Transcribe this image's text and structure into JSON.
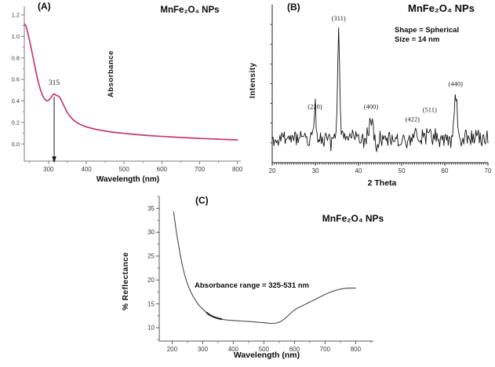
{
  "chart_data": [
    {
      "type": "line",
      "panel_label": "(A)",
      "title": "MnFe₂O₄ NPs",
      "xlabel": "Wavelength (nm)",
      "ylabel": "Absorbance",
      "xlim": [
        236,
        809
      ],
      "ylim": [
        -0.16,
        1.28
      ],
      "xticks": [
        "300",
        "400",
        "500",
        "600",
        "700",
        "800"
      ],
      "xminor": [
        250,
        350,
        450,
        550,
        650,
        750
      ],
      "yticks": [
        "0.0",
        "0.2",
        "0.4",
        "0.6",
        "0.8",
        "1.0",
        "1.2"
      ],
      "yminor": [
        0.1,
        0.3,
        0.5,
        0.7,
        0.9,
        1.1
      ],
      "line_color": "#c23a72",
      "grid": false,
      "peak_annotation": {
        "text": "315",
        "x": 315,
        "label_value": 0.55,
        "arrow_from": 0.44
      },
      "x": [
        236,
        240,
        244,
        248,
        252,
        256,
        260,
        264,
        268,
        272,
        276,
        280,
        284,
        288,
        292,
        296,
        300,
        304,
        308,
        312,
        315,
        318,
        321,
        324,
        327,
        330,
        334,
        338,
        342,
        346,
        350,
        355,
        360,
        365,
        370,
        375,
        380,
        390,
        400,
        410,
        420,
        430,
        440,
        455,
        470,
        485,
        500,
        515,
        530,
        550,
        570,
        590,
        610,
        630,
        650,
        670,
        690,
        710,
        730,
        750,
        770,
        790,
        800
      ],
      "y": [
        1.115,
        1.1,
        1.05,
        0.99,
        0.925,
        0.86,
        0.79,
        0.72,
        0.655,
        0.59,
        0.535,
        0.49,
        0.455,
        0.425,
        0.408,
        0.401,
        0.405,
        0.418,
        0.44,
        0.458,
        0.465,
        0.458,
        0.45,
        0.448,
        0.442,
        0.43,
        0.405,
        0.375,
        0.345,
        0.318,
        0.292,
        0.266,
        0.244,
        0.226,
        0.211,
        0.199,
        0.188,
        0.172,
        0.159,
        0.149,
        0.14,
        0.133,
        0.126,
        0.117,
        0.11,
        0.103,
        0.098,
        0.093,
        0.088,
        0.082,
        0.077,
        0.072,
        0.068,
        0.064,
        0.06,
        0.056,
        0.053,
        0.05,
        0.047,
        0.044,
        0.041,
        0.038,
        0.036
      ]
    },
    {
      "type": "line",
      "subtype": "xrd",
      "panel_label": "(B)",
      "title": "MnFe₂O₄ NPs",
      "info_lines": [
        "Shape = Spherical",
        "Size = 14 nm"
      ],
      "xlabel": "2 Theta",
      "ylabel": "Intensity",
      "xlim": [
        20,
        70
      ],
      "ylim": [
        0,
        200
      ],
      "xticks": [
        "20",
        "30",
        "40",
        "50",
        "60",
        "70"
      ],
      "x_minor_step": 0.5,
      "y_minor_step": 25,
      "baseline": 30,
      "noise_amplitude": 10,
      "seed": 11,
      "step": 0.2,
      "line_color": "#141414",
      "grid": false,
      "peaks": [
        {
          "label": "(220)",
          "center": 29.9,
          "height": 29,
          "width": 0.35,
          "label_y": 68,
          "label_dx": 0
        },
        {
          "label": "(311)",
          "center": 35.4,
          "height": 140,
          "width": 0.27,
          "label_y": 180,
          "label_dx": 0
        },
        {
          "label": "(400)",
          "center": 42.9,
          "height": 27,
          "width": 0.35,
          "label_y": 68,
          "label_dx": 0
        },
        {
          "label": "(422)",
          "center": 53.3,
          "height": 13,
          "width": 0.33,
          "label_y": 52,
          "label_dx": -0.8
        },
        {
          "label": "(511)",
          "center": 56.5,
          "height": 16,
          "width": 0.33,
          "label_y": 64,
          "label_dx": 0
        },
        {
          "label": "(440)",
          "center": 62.5,
          "height": 54,
          "width": 0.38,
          "label_y": 97,
          "label_dx": 0
        }
      ]
    },
    {
      "type": "line",
      "panel_label": "(C)",
      "title": "MnFe₂O₄ NPs",
      "xlabel": "Wavelength (nm)",
      "ylabel": "% Reflectance",
      "annotation": "Absorbance range = 325-531 nm",
      "xlim": [
        158,
        858
      ],
      "ylim": [
        7.2,
        37.5
      ],
      "xticks": [
        "200",
        "300",
        "400",
        "500",
        "600",
        "700",
        "800"
      ],
      "xminor": [
        150,
        250,
        350,
        450,
        550,
        650,
        750,
        850
      ],
      "yticks": [
        "10",
        "15",
        "20",
        "25",
        "30",
        "35"
      ],
      "yminor": [
        7.5,
        12.5,
        17.5,
        22.5,
        27.5,
        32.5,
        37.5
      ],
      "line_color": "#4a4a4a",
      "grid": false,
      "x": [
        205,
        209,
        213,
        217,
        221,
        226,
        231,
        236,
        241,
        247,
        253,
        259,
        266,
        273,
        280,
        288,
        296,
        304,
        312,
        320,
        328,
        336,
        345,
        354,
        363,
        372,
        382,
        392,
        402,
        414,
        426,
        438,
        450,
        462,
        475,
        488,
        500,
        512,
        522,
        532,
        542,
        552,
        562,
        572,
        582,
        592,
        602,
        614,
        626,
        640,
        654,
        668,
        682,
        696,
        710,
        724,
        738,
        752,
        766,
        780,
        792,
        800
      ],
      "y": [
        34.3,
        32.4,
        30.6,
        28.9,
        27.3,
        25.5,
        23.9,
        22.4,
        21.1,
        19.8,
        18.7,
        17.8,
        16.9,
        16.1,
        15.4,
        14.7,
        14.15,
        13.65,
        13.2,
        12.8,
        12.5,
        12.25,
        12.05,
        11.9,
        11.78,
        11.68,
        11.6,
        11.55,
        11.5,
        11.45,
        11.4,
        11.35,
        11.3,
        11.25,
        11.18,
        11.1,
        11.05,
        10.95,
        10.9,
        10.9,
        10.98,
        11.2,
        11.6,
        12.1,
        12.7,
        13.3,
        13.8,
        14.25,
        14.6,
        15.05,
        15.5,
        15.95,
        16.4,
        16.85,
        17.25,
        17.6,
        17.9,
        18.1,
        18.25,
        18.3,
        18.3,
        18.28
      ]
    }
  ]
}
